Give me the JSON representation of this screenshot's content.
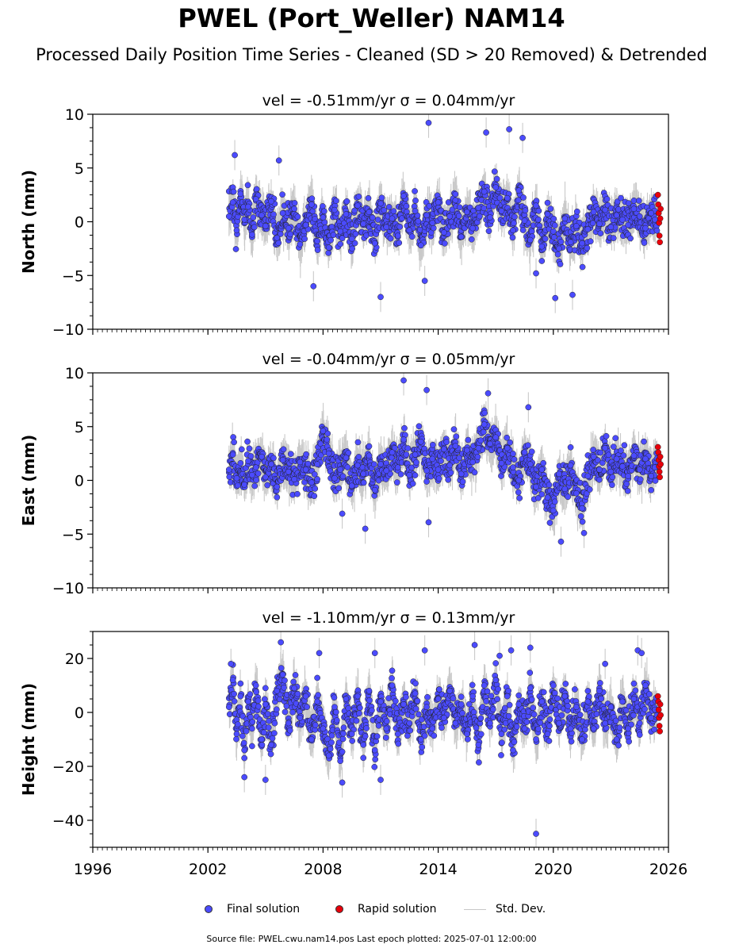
{
  "title": "PWEL (Port_Weller) NAM14",
  "subtitle": "Processed Daily Position Time Series - Cleaned (SD > 20 Removed) & Detrended",
  "legend": {
    "final": "Final solution",
    "rapid": "Rapid solution",
    "std": "Std. Dev."
  },
  "footer": "Source file: PWEL.cwu.nam14.pos  Last epoch plotted: 2025-07-01 12:00:00",
  "colors": {
    "final": "#4b4bff",
    "rapid": "#e8000b",
    "std": "#b8b8b8",
    "edge": "#222222"
  },
  "chart_data": [
    {
      "type": "scatter",
      "panel_title": "vel = -0.51mm/yr   σ = 0.04mm/yr",
      "ylabel": "North (mm)",
      "xlim": [
        1996,
        2026
      ],
      "ylim": [
        -10,
        10
      ],
      "yticks": [
        -10,
        -5,
        0,
        5,
        10
      ],
      "ytick_labels": [
        "−10",
        "−5",
        "0",
        "5",
        "10"
      ],
      "xticks": [
        1996,
        2002,
        2008,
        2014,
        2020,
        2026
      ],
      "show_xtick_labels": false,
      "series": [
        {
          "name": "Final solution",
          "x": [
            2003.1,
            2003.3,
            2003.5,
            2003.7,
            2003.9,
            2004.1,
            2004.3,
            2004.5,
            2004.8,
            2005.0,
            2005.3,
            2005.6,
            2005.9,
            2006.2,
            2006.5,
            2006.8,
            2007.1,
            2007.4,
            2007.7,
            2008.0,
            2008.3,
            2008.6,
            2008.9,
            2009.2,
            2009.5,
            2009.8,
            2010.1,
            2010.4,
            2010.7,
            2011.0,
            2011.3,
            2011.6,
            2011.9,
            2012.2,
            2012.5,
            2012.8,
            2013.1,
            2013.4,
            2013.7,
            2014.0,
            2014.3,
            2014.6,
            2014.9,
            2015.2,
            2015.5,
            2015.8,
            2016.1,
            2016.4,
            2016.7,
            2017.0,
            2017.3,
            2017.6,
            2017.9,
            2018.2,
            2018.5,
            2018.8,
            2019.1,
            2019.4,
            2019.7,
            2020.0,
            2020.3,
            2020.6,
            2020.9,
            2021.2,
            2021.5,
            2021.8,
            2022.1,
            2022.4,
            2022.7,
            2023.0,
            2023.3,
            2023.6,
            2023.9,
            2024.2,
            2024.5,
            2024.8,
            2025.1,
            2025.3
          ],
          "y": [
            0.5,
            1.8,
            -0.8,
            2.6,
            0.2,
            1.4,
            -1.2,
            2.1,
            0.6,
            -0.4,
            1.9,
            -1.5,
            0.8,
            -0.6,
            1.2,
            -2.1,
            -0.3,
            1.6,
            -1.8,
            0.4,
            -2.4,
            1.1,
            -0.9,
            0.7,
            -1.6,
            1.5,
            -0.2,
            0.9,
            -2.0,
            1.7,
            -0.5,
            0.3,
            -1.3,
            2.4,
            -0.8,
            1.0,
            -2.2,
            0.6,
            -0.1,
            1.8,
            -1.0,
            0.5,
            2.0,
            -1.4,
            0.9,
            -0.6,
            1.3,
            2.8,
            0.4,
            3.2,
            1.0,
            2.2,
            -0.8,
            2.9,
            0.1,
            -1.7,
            1.5,
            -2.3,
            0.7,
            -0.9,
            -2.5,
            0.3,
            -1.9,
            -0.4,
            -2.0,
            -0.7,
            0.9,
            -0.2,
            1.1,
            -0.5,
            0.6,
            0.2,
            -0.3,
            1.2,
            0.5,
            -0.6,
            0.8,
            0.2
          ],
          "outliers": [
            [
              2003.4,
              6.2
            ],
            [
              2005.7,
              5.7
            ],
            [
              2007.5,
              -6.0
            ],
            [
              2011.0,
              -7.0
            ],
            [
              2013.3,
              -5.5
            ],
            [
              2013.5,
              9.2
            ],
            [
              2016.5,
              8.3
            ],
            [
              2017.7,
              8.6
            ],
            [
              2018.4,
              7.8
            ],
            [
              2019.1,
              -4.8
            ],
            [
              2020.1,
              -7.1
            ],
            [
              2021.0,
              -6.8
            ]
          ]
        },
        {
          "name": "Rapid solution",
          "x": [
            2025.45,
            2025.47,
            2025.49,
            2025.51,
            2025.53,
            2025.55,
            2025.57,
            2025.59
          ],
          "y": [
            2.5,
            1.6,
            0.8,
            -0.1,
            -1.3,
            -1.9,
            0.3,
            1.2
          ]
        }
      ]
    },
    {
      "type": "scatter",
      "panel_title": "vel = -0.04mm/yr   σ = 0.05mm/yr",
      "ylabel": "East (mm)",
      "xlim": [
        1996,
        2026
      ],
      "ylim": [
        -10,
        10
      ],
      "yticks": [
        -10,
        -5,
        0,
        5,
        10
      ],
      "ytick_labels": [
        "−10",
        "−5",
        "0",
        "5",
        "10"
      ],
      "xticks": [
        1996,
        2002,
        2008,
        2014,
        2020,
        2026
      ],
      "show_xtick_labels": false,
      "series": [
        {
          "name": "Final solution",
          "x": [
            2003.1,
            2003.3,
            2003.5,
            2003.7,
            2003.9,
            2004.1,
            2004.3,
            2004.5,
            2004.8,
            2005.0,
            2005.3,
            2005.6,
            2005.9,
            2006.2,
            2006.5,
            2006.8,
            2007.1,
            2007.4,
            2007.7,
            2008.0,
            2008.3,
            2008.6,
            2008.9,
            2009.2,
            2009.5,
            2009.8,
            2010.1,
            2010.4,
            2010.7,
            2011.0,
            2011.3,
            2011.6,
            2011.9,
            2012.2,
            2012.5,
            2012.8,
            2013.1,
            2013.4,
            2013.7,
            2014.0,
            2014.3,
            2014.6,
            2014.9,
            2015.2,
            2015.5,
            2015.8,
            2016.1,
            2016.4,
            2016.7,
            2017.0,
            2017.3,
            2017.6,
            2017.9,
            2018.2,
            2018.5,
            2018.8,
            2019.1,
            2019.4,
            2019.7,
            2020.0,
            2020.3,
            2020.6,
            2020.9,
            2021.2,
            2021.5,
            2021.8,
            2022.1,
            2022.4,
            2022.7,
            2023.0,
            2023.3,
            2023.6,
            2023.9,
            2024.2,
            2024.5,
            2024.8,
            2025.1,
            2025.3
          ],
          "y": [
            1.0,
            2.4,
            0.2,
            1.6,
            -0.4,
            1.8,
            0.5,
            1.2,
            2.2,
            0.3,
            1.5,
            -0.6,
            1.9,
            0.8,
            0.1,
            1.7,
            1.0,
            -0.2,
            1.5,
            4.6,
            2.5,
            0.2,
            1.0,
            2.1,
            -0.5,
            1.4,
            0.6,
            2.3,
            -0.9,
            1.5,
            0.9,
            2.6,
            1.2,
            3.8,
            0.5,
            2.4,
            3.6,
            0.9,
            2.0,
            1.0,
            2.9,
            1.4,
            3.2,
            0.6,
            2.8,
            1.7,
            3.0,
            5.2,
            3.4,
            4.0,
            1.6,
            3.0,
            1.2,
            0.0,
            2.6,
            1.5,
            -0.6,
            1.0,
            -1.6,
            -2.8,
            0.6,
            -0.8,
            1.4,
            -1.2,
            -2.6,
            0.4,
            2.2,
            1.0,
            3.0,
            0.8,
            2.0,
            1.3,
            0.4,
            2.3,
            1.0,
            2.0,
            0.4,
            1.2
          ],
          "outliers": [
            [
              2009.0,
              -3.1
            ],
            [
              2010.2,
              -4.5
            ],
            [
              2012.2,
              9.3
            ],
            [
              2013.4,
              8.4
            ],
            [
              2013.5,
              -3.9
            ],
            [
              2016.6,
              8.1
            ],
            [
              2018.7,
              6.8
            ],
            [
              2020.4,
              -5.7
            ],
            [
              2021.6,
              -4.9
            ]
          ]
        },
        {
          "name": "Rapid solution",
          "x": [
            2025.45,
            2025.47,
            2025.49,
            2025.51,
            2025.53,
            2025.55,
            2025.57,
            2025.59
          ],
          "y": [
            3.1,
            2.6,
            1.9,
            1.3,
            0.8,
            0.3,
            2.2,
            1.5
          ]
        }
      ]
    },
    {
      "type": "scatter",
      "panel_title": "vel = -1.10mm/yr   σ = 0.13mm/yr",
      "ylabel": "Height (mm)",
      "xlim": [
        1996,
        2026
      ],
      "ylim": [
        -50,
        30
      ],
      "yticks": [
        -40,
        -20,
        0,
        20
      ],
      "ytick_labels": [
        "−40",
        "−20",
        "0",
        "20"
      ],
      "xticks": [
        1996,
        2002,
        2008,
        2014,
        2020,
        2026
      ],
      "xtick_labels": [
        "1996",
        "2002",
        "2008",
        "2014",
        "2020",
        "2026"
      ],
      "show_xtick_labels": true,
      "series": [
        {
          "name": "Final solution",
          "x": [
            2003.1,
            2003.3,
            2003.5,
            2003.7,
            2003.9,
            2004.1,
            2004.3,
            2004.5,
            2004.8,
            2005.0,
            2005.3,
            2005.6,
            2005.9,
            2006.2,
            2006.5,
            2006.8,
            2007.1,
            2007.4,
            2007.7,
            2008.0,
            2008.3,
            2008.6,
            2008.9,
            2009.2,
            2009.5,
            2009.8,
            2010.1,
            2010.4,
            2010.7,
            2011.0,
            2011.3,
            2011.6,
            2011.9,
            2012.2,
            2012.5,
            2012.8,
            2013.1,
            2013.4,
            2013.7,
            2014.0,
            2014.3,
            2014.6,
            2014.9,
            2015.2,
            2015.5,
            2015.8,
            2016.1,
            2016.4,
            2016.7,
            2017.0,
            2017.3,
            2017.6,
            2017.9,
            2018.2,
            2018.5,
            2018.8,
            2019.1,
            2019.4,
            2019.7,
            2020.0,
            2020.3,
            2020.6,
            2020.9,
            2021.2,
            2021.5,
            2021.8,
            2022.1,
            2022.4,
            2022.7,
            2023.0,
            2023.3,
            2023.6,
            2023.9,
            2024.2,
            2024.5,
            2024.8,
            2025.1,
            2025.3
          ],
          "y": [
            2,
            12,
            -8,
            6,
            -14,
            4,
            -6,
            10,
            -10,
            3,
            -12,
            8,
            14,
            -4,
            9,
            -2,
            6,
            -10,
            4,
            -6,
            -16,
            2,
            -18,
            5,
            -8,
            6,
            -12,
            8,
            -14,
            4,
            -6,
            10,
            -8,
            3,
            -4,
            7,
            -10,
            2,
            -6,
            5,
            -2,
            8,
            -4,
            3,
            -8,
            6,
            -12,
            10,
            -4,
            12,
            -8,
            6,
            -14,
            3,
            -6,
            9,
            -10,
            4,
            -8,
            10,
            -4,
            6,
            -6,
            2,
            -10,
            4,
            -6,
            8,
            -4,
            2,
            -10,
            4,
            -6,
            5,
            -4,
            10,
            -2,
            1
          ],
          "outliers": [
            [
              2003.2,
              18
            ],
            [
              2003.9,
              -24
            ],
            [
              2005.0,
              -25
            ],
            [
              2005.8,
              26
            ],
            [
              2007.8,
              22
            ],
            [
              2009.0,
              -26
            ],
            [
              2010.7,
              22
            ],
            [
              2011.0,
              -25
            ],
            [
              2013.3,
              23
            ],
            [
              2015.9,
              25
            ],
            [
              2017.2,
              21
            ],
            [
              2017.8,
              23
            ],
            [
              2018.8,
              24
            ],
            [
              2019.1,
              -45
            ],
            [
              2022.7,
              18
            ],
            [
              2024.4,
              23
            ],
            [
              2024.6,
              22
            ]
          ]
        },
        {
          "name": "Rapid solution",
          "x": [
            2025.45,
            2025.47,
            2025.49,
            2025.51,
            2025.53,
            2025.55,
            2025.57,
            2025.59
          ],
          "y": [
            6,
            4,
            1,
            -2,
            -5,
            -7,
            3,
            -1
          ]
        }
      ]
    }
  ]
}
